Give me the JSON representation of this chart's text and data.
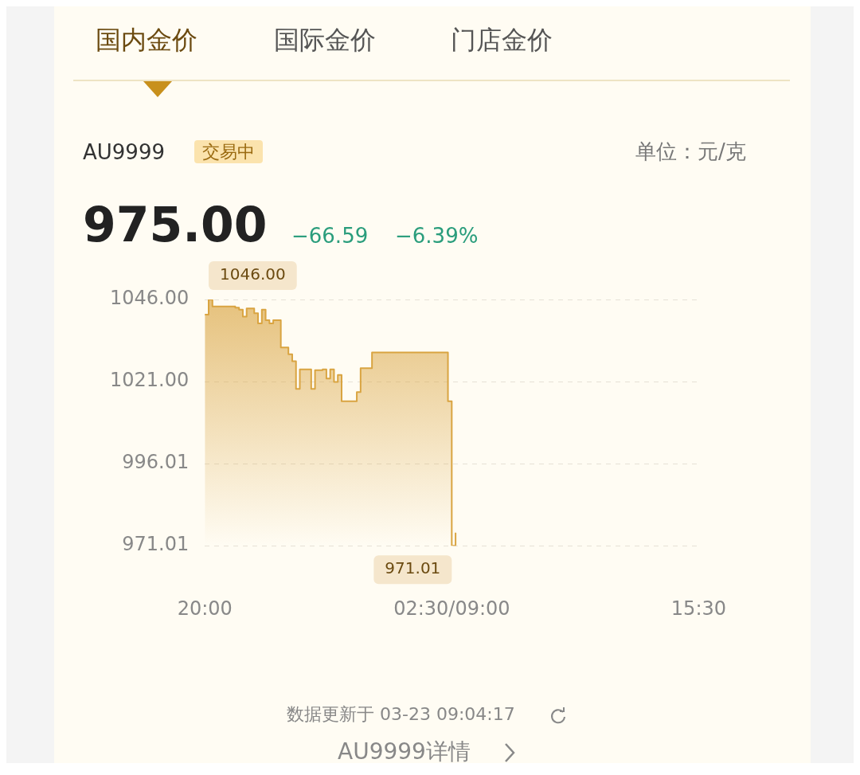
{
  "chart_data": {
    "type": "area",
    "title": "AU9999",
    "annotations": [
      "国内金价",
      "国际金价",
      "门店金价",
      "交易中",
      "单位：元/克",
      "975.00",
      "−66.59",
      "−6.39%",
      "数据更新于 03-23 09:04:17",
      "AU9999详情",
      "1046.00",
      "971.01"
    ],
    "categories": [
      "20:00",
      null,
      null,
      null,
      null,
      null,
      null,
      null,
      null,
      null,
      null,
      null,
      null,
      null,
      null,
      null,
      null,
      null,
      null,
      null,
      null,
      null,
      null,
      null,
      null,
      null,
      null,
      null,
      null,
      null,
      null,
      null,
      null,
      null,
      null,
      null,
      null,
      null,
      null,
      null,
      null,
      null,
      null,
      null,
      null,
      null,
      null,
      null,
      null,
      null,
      null,
      null,
      null,
      null,
      null,
      null,
      null,
      null,
      null,
      null,
      null,
      null,
      null,
      null,
      null,
      "02:30/09:00",
      null,
      null,
      null,
      null,
      null,
      null,
      null,
      null,
      null,
      null,
      null,
      null,
      null,
      null,
      null,
      null,
      null,
      null,
      null,
      null,
      null,
      null,
      null,
      null,
      null,
      null,
      null,
      null,
      null,
      null,
      null,
      null,
      null,
      null,
      null,
      null,
      null,
      null,
      null,
      null,
      null,
      null,
      null,
      null,
      null,
      null,
      null,
      null,
      null,
      null,
      null,
      null,
      null,
      null,
      null,
      null,
      null,
      null,
      null,
      null,
      null,
      null,
      null,
      null,
      "15:30"
    ],
    "series": [
      {
        "color": "#d9a441",
        "values": [
          1041.4,
          1046,
          1043.9,
          1043.9,
          1043.9,
          1043.9,
          1043.9,
          1043.9,
          1043.5,
          1042.9,
          1040.8,
          1043.3,
          1043.3,
          1041.8,
          1038.7,
          1042.9,
          1039.7,
          1038.7,
          1039.7,
          1039.7,
          1031.4,
          1031.4,
          1029.3,
          1027.2,
          1018.8,
          1024.7,
          1024.7,
          1024.7,
          1018.8,
          1024.5,
          1024.5,
          1024.7,
          1021.9,
          1024.7,
          1020.9,
          1023.0,
          1015.0,
          1015.0,
          1015.0,
          1015.0,
          1017.8,
          1025.1,
          1025.1,
          1025.1,
          1029.9,
          1029.9,
          1029.9,
          1029.9,
          1029.9,
          1029.9,
          1029.9,
          1029.9,
          1029.9,
          1029.9,
          1029.9,
          1029.9,
          1029.9,
          1029.9,
          1029.9,
          1029.9,
          1029.9,
          1029.9,
          1029.9,
          1029.9,
          1015.0,
          971.01,
          975,
          null,
          null,
          null,
          null,
          null,
          null,
          null,
          null,
          null,
          null,
          null,
          null,
          null,
          null,
          null,
          null,
          null,
          null,
          null,
          null,
          null,
          null,
          null,
          null,
          null,
          null,
          null,
          null,
          null,
          null,
          null,
          null,
          null,
          null,
          null,
          null,
          null,
          null,
          null,
          null,
          null,
          null,
          null,
          null,
          null,
          null,
          null,
          null,
          null,
          null,
          null,
          null,
          null,
          null,
          null,
          null,
          null,
          null,
          null,
          null,
          null,
          null,
          null,
          null
        ]
      }
    ],
    "ylim": [
      971.01,
      1046
    ],
    "yticks": [
      {
        "value": 971.01,
        "label": "971.01"
      },
      {
        "value": 996.01,
        "label": "996.01"
      },
      {
        "value": 1021,
        "label": "1021.00"
      },
      {
        "value": 1046,
        "label": "1046.00"
      }
    ],
    "grid": "y",
    "legend": false,
    "marker": "none",
    "line_style": "solid"
  }
}
